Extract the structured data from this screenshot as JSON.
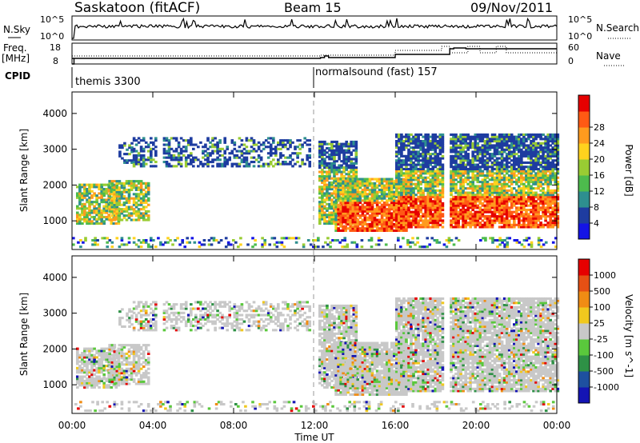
{
  "header": {
    "title": "Saskatoon (fitACF)",
    "beam": "Beam 15",
    "date": "09/Nov/2011"
  },
  "top_panels": {
    "nsky_label": "N.Sky",
    "nsky_ticks": [
      "10^5",
      "10^0"
    ],
    "nsearch_label": "N.Search",
    "nsearch_ticks": [
      "10^5",
      "10^0"
    ],
    "freq_label": "Freq.",
    "freq_unit": "[MHz]",
    "freq_ticks": [
      "18",
      "8"
    ],
    "nave_label": "Nave",
    "nave_ticks": [
      "60",
      "0"
    ],
    "cpid_label": "CPID",
    "cpid_segments": [
      {
        "name": "themis 3300",
        "start_hour": 0
      },
      {
        "name": "normalsound (fast) 157",
        "start_hour": 12
      }
    ]
  },
  "chart_data": [
    {
      "type": "heatmap",
      "name": "power",
      "ylabel": "Slant Range [km]",
      "yticks": [
        1000,
        2000,
        3000,
        4000
      ],
      "ylim": [
        200,
        4600
      ],
      "xlim": [
        0,
        24
      ],
      "colorbar": {
        "label": "Power [dB]",
        "ticks": [
          "4",
          "8",
          "12",
          "16",
          "20",
          "24",
          "28"
        ],
        "colors": [
          "#1414e6",
          "#1e3ca0",
          "#2e8f8f",
          "#4dbb4d",
          "#99cc33",
          "#ffd21e",
          "#ff9b1e",
          "#ff5a14",
          "#e60000"
        ]
      }
    },
    {
      "type": "heatmap",
      "name": "velocity",
      "ylabel": "Slant Range [km]",
      "yticks": [
        1000,
        2000,
        3000,
        4000
      ],
      "ylim": [
        200,
        4600
      ],
      "xlim": [
        0,
        24
      ],
      "xlabel": "Time UT",
      "xticks": [
        "00:00",
        "04:00",
        "08:00",
        "12:00",
        "16:00",
        "20:00",
        "00:00"
      ],
      "colorbar": {
        "label": "Velocity [m s^-1]",
        "ticks": [
          "1000",
          "500",
          "100",
          "25",
          "-25",
          "-100",
          "-500",
          "-1000"
        ],
        "colors": [
          "#1414b4",
          "#1e50a0",
          "#2e9146",
          "#5ac83c",
          "#c8c8c8",
          "#f0c81e",
          "#f08c14",
          "#e65014",
          "#e60000"
        ]
      }
    }
  ]
}
